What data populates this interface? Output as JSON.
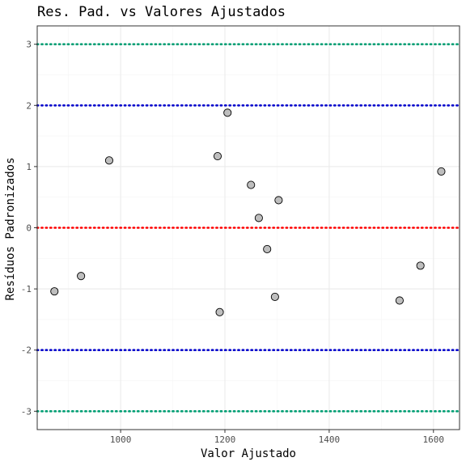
{
  "chart_data": {
    "type": "scatter",
    "title": "Res. Pad. vs Valores Ajustados",
    "xlabel": "Valor Ajustado",
    "ylabel": "Resíduos Padronizados",
    "xlim": [
      840,
      1650
    ],
    "ylim": [
      -3.3,
      3.3
    ],
    "x_ticks": [
      1000,
      1200,
      1400,
      1600
    ],
    "y_ticks": [
      -3,
      -2,
      -1,
      0,
      1,
      2,
      3
    ],
    "grid": true,
    "points": [
      {
        "x": 873,
        "y": -1.04
      },
      {
        "x": 924,
        "y": -0.79
      },
      {
        "x": 978,
        "y": 1.1
      },
      {
        "x": 1186,
        "y": 1.17
      },
      {
        "x": 1190,
        "y": -1.38
      },
      {
        "x": 1205,
        "y": 1.88
      },
      {
        "x": 1250,
        "y": 0.7
      },
      {
        "x": 1265,
        "y": 0.16
      },
      {
        "x": 1281,
        "y": -0.35
      },
      {
        "x": 1296,
        "y": -1.13
      },
      {
        "x": 1303,
        "y": 0.45
      },
      {
        "x": 1535,
        "y": -1.19
      },
      {
        "x": 1575,
        "y": -0.62
      },
      {
        "x": 1615,
        "y": 0.92
      }
    ],
    "reference_lines": [
      {
        "y": 3,
        "color": "#009E73"
      },
      {
        "y": 2,
        "color": "#0000CC"
      },
      {
        "y": 0,
        "color": "#FF0000"
      },
      {
        "y": -2,
        "color": "#0000CC"
      },
      {
        "y": -3,
        "color": "#009E73"
      }
    ],
    "colors": {
      "point_fill": "#BEBEBE",
      "point_stroke": "#000000",
      "grid_major": "#EBEBEB",
      "grid_minor": "#F5F5F5",
      "panel_border": "#333333"
    }
  }
}
